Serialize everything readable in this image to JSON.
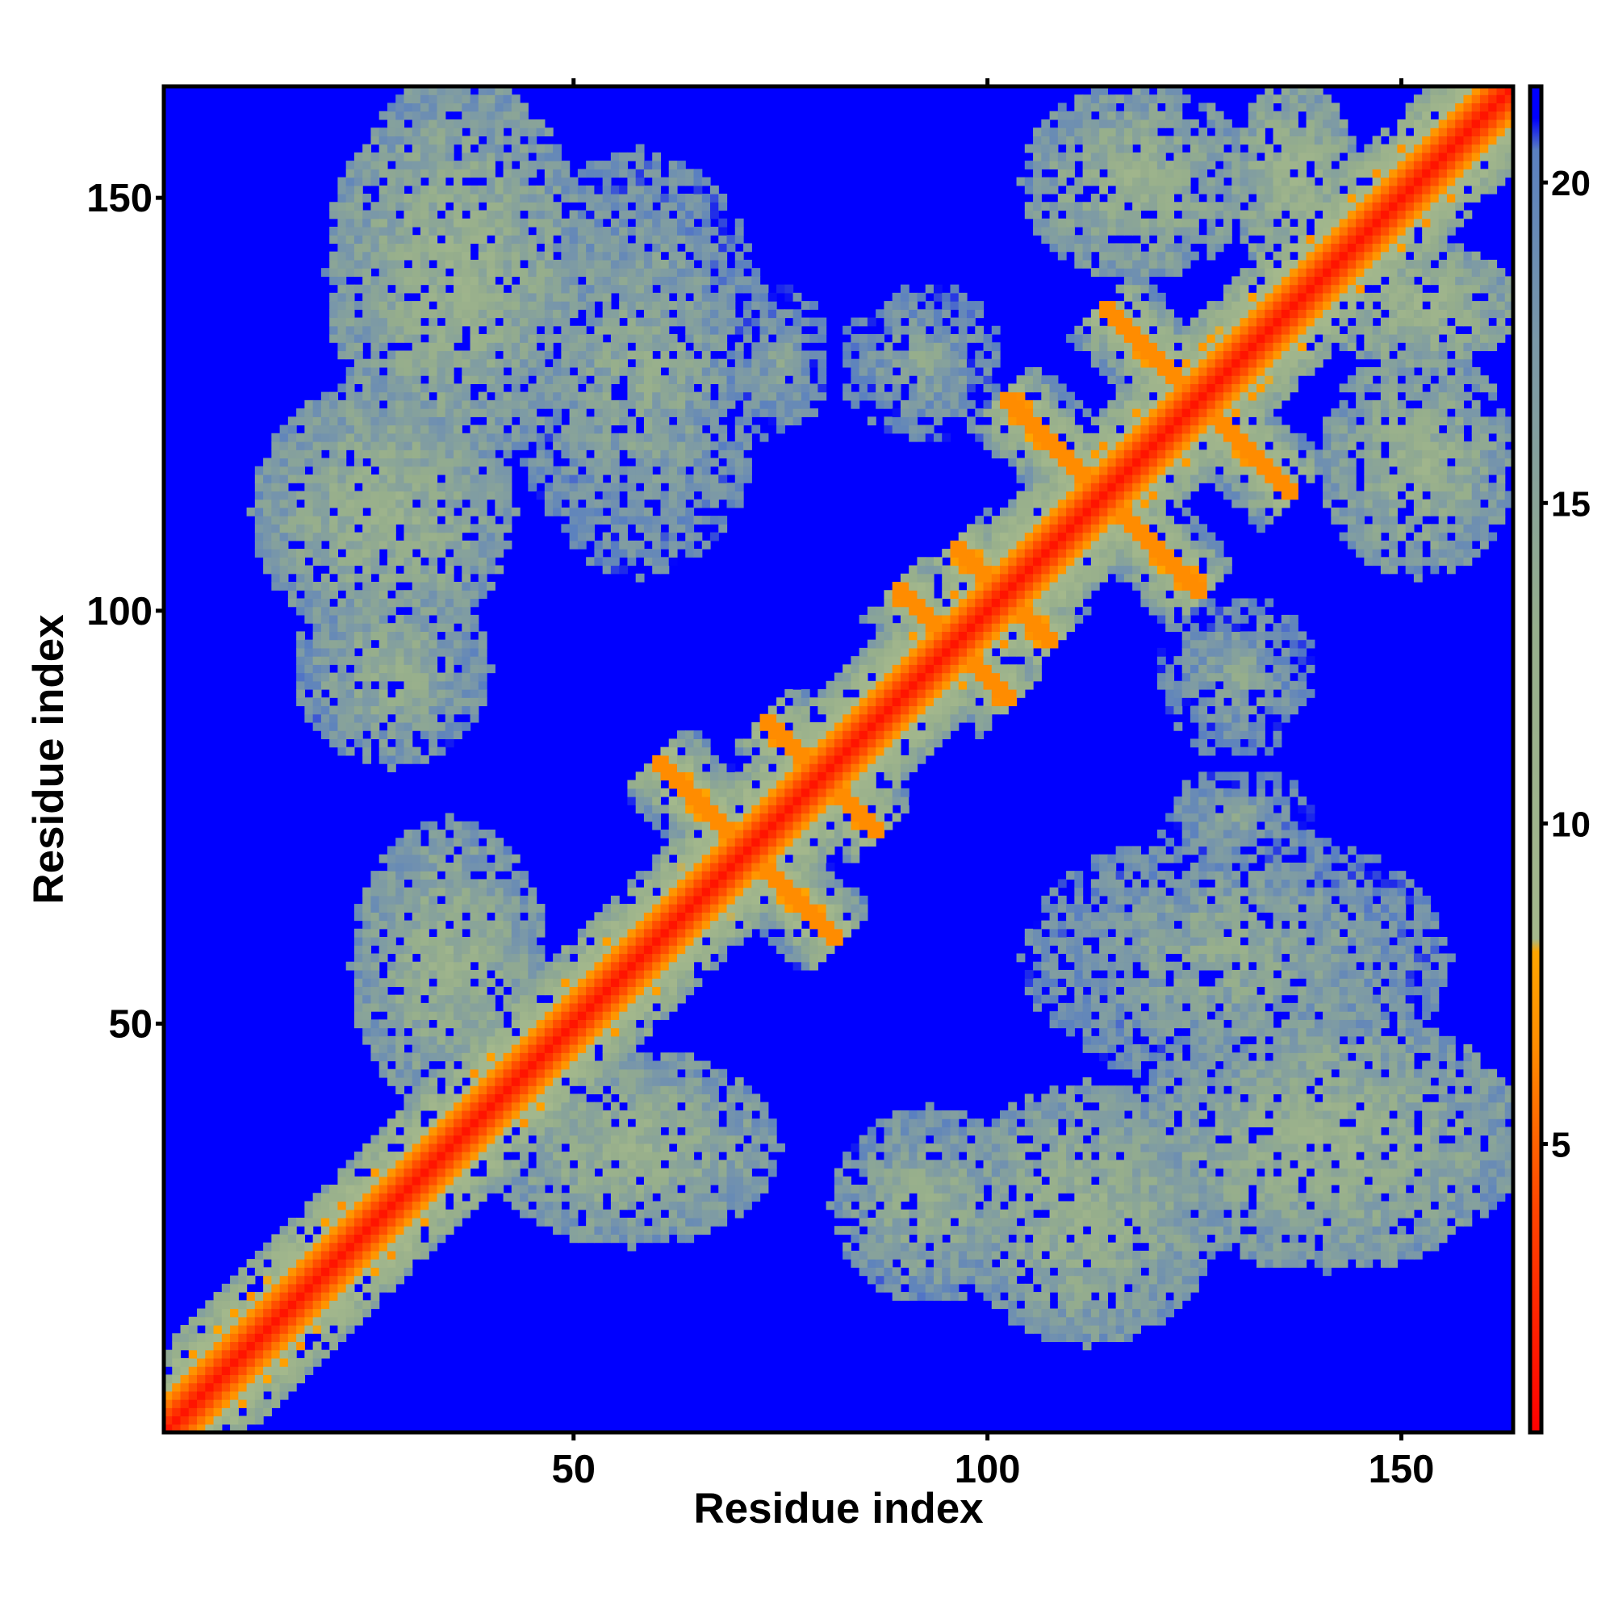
{
  "chart_data": {
    "type": "heatmap",
    "title": "",
    "xlabel": "Residue index",
    "ylabel": "Residue index",
    "n_residues": 163,
    "xlim": [
      0.5,
      163.5
    ],
    "ylim": [
      0.5,
      163.5
    ],
    "x_ticks": [
      50,
      100,
      150
    ],
    "y_ticks": [
      50,
      100,
      150
    ],
    "colorbar": {
      "ticks": [
        5,
        10,
        15,
        20
      ],
      "range": [
        0.5,
        21.5
      ],
      "saturation_value": 21,
      "stops": [
        {
          "value": 0.5,
          "color": "#ff0000"
        },
        {
          "value": 4.0,
          "color": "#ff4500"
        },
        {
          "value": 6.5,
          "color": "#ff8c00"
        },
        {
          "value": 8.0,
          "color": "#ffa500"
        },
        {
          "value": 8.2,
          "color": "#a4b88c"
        },
        {
          "value": 13.0,
          "color": "#96ae8c"
        },
        {
          "value": 17.5,
          "color": "#7a98a8"
        },
        {
          "value": 20.5,
          "color": "#5a80c0"
        },
        {
          "value": 21.0,
          "color": "#0000ff"
        },
        {
          "value": 21.5,
          "color": "#0000ff"
        }
      ]
    },
    "background_color": "#0000ff",
    "contact_features": [
      {
        "kind": "diagonal_band",
        "from": 1,
        "to": 163,
        "value": 1.5
      },
      {
        "kind": "helix_band",
        "from": 1,
        "to": 20,
        "width": 4,
        "value": 7
      },
      {
        "kind": "helix_band",
        "from": 42,
        "to": 54,
        "width": 3,
        "value": 7
      },
      {
        "kind": "helix_band",
        "from": 140,
        "to": 163,
        "width": 3,
        "value": 7
      },
      {
        "kind": "antidiagonal",
        "center_x": 70,
        "center_y": 72,
        "half_length": 10,
        "value": 6.5
      },
      {
        "kind": "antidiagonal",
        "center_x": 96,
        "center_y": 96,
        "half_length": 7,
        "value": 6.5
      },
      {
        "kind": "antidiagonal",
        "center_x": 114,
        "center_y": 114,
        "half_length": 12,
        "value": 6.5
      },
      {
        "kind": "antidiagonal",
        "center_x": 125,
        "center_y": 126,
        "half_length": 11,
        "value": 6.5
      },
      {
        "kind": "antidiagonal",
        "center_x": 80,
        "center_y": 80,
        "half_length": 7,
        "value": 6.5
      },
      {
        "kind": "antidiagonal",
        "center_x": 102,
        "center_y": 102,
        "half_length": 6,
        "value": 6.5
      },
      {
        "kind": "blob",
        "cx": 36,
        "cy": 141,
        "rx": 16,
        "ry": 24,
        "value": 12
      },
      {
        "kind": "blob",
        "cx": 27,
        "cy": 112,
        "rx": 16,
        "ry": 16,
        "value": 12
      },
      {
        "kind": "blob",
        "cx": 28,
        "cy": 93,
        "rx": 12,
        "ry": 12,
        "value": 13
      },
      {
        "kind": "blob",
        "cx": 35,
        "cy": 57,
        "rx": 12,
        "ry": 18,
        "value": 12
      },
      {
        "kind": "blob",
        "cx": 58,
        "cy": 130,
        "rx": 16,
        "ry": 26,
        "value": 14
      },
      {
        "kind": "blob",
        "cx": 60,
        "cy": 38,
        "rx": 16,
        "ry": 12,
        "value": 12
      },
      {
        "kind": "blob",
        "cx": 75,
        "cy": 130,
        "rx": 6,
        "ry": 10,
        "value": 15
      },
      {
        "kind": "blob",
        "cx": 92,
        "cy": 130,
        "rx": 10,
        "ry": 10,
        "value": 15
      },
      {
        "kind": "blob",
        "cx": 90,
        "cy": 40,
        "rx": 14,
        "ry": 12,
        "value": 13
      },
      {
        "kind": "blob",
        "cx": 110,
        "cy": 40,
        "rx": 12,
        "ry": 16,
        "value": 12
      },
      {
        "kind": "blob",
        "cx": 120,
        "cy": 80,
        "rx": 18,
        "ry": 12,
        "value": 14
      },
      {
        "kind": "blob",
        "cx": 118,
        "cy": 152,
        "rx": 14,
        "ry": 12,
        "value": 12
      },
      {
        "kind": "blob",
        "cx": 145,
        "cy": 60,
        "rx": 18,
        "ry": 16,
        "value": 13
      },
      {
        "kind": "blob",
        "cx": 150,
        "cy": 44,
        "rx": 14,
        "ry": 8,
        "value": 10
      },
      {
        "kind": "blob",
        "cx": 148,
        "cy": 115,
        "rx": 16,
        "ry": 10,
        "value": 12
      },
      {
        "kind": "blob",
        "cx": 137,
        "cy": 152,
        "rx": 8,
        "ry": 12,
        "value": 11
      }
    ]
  }
}
